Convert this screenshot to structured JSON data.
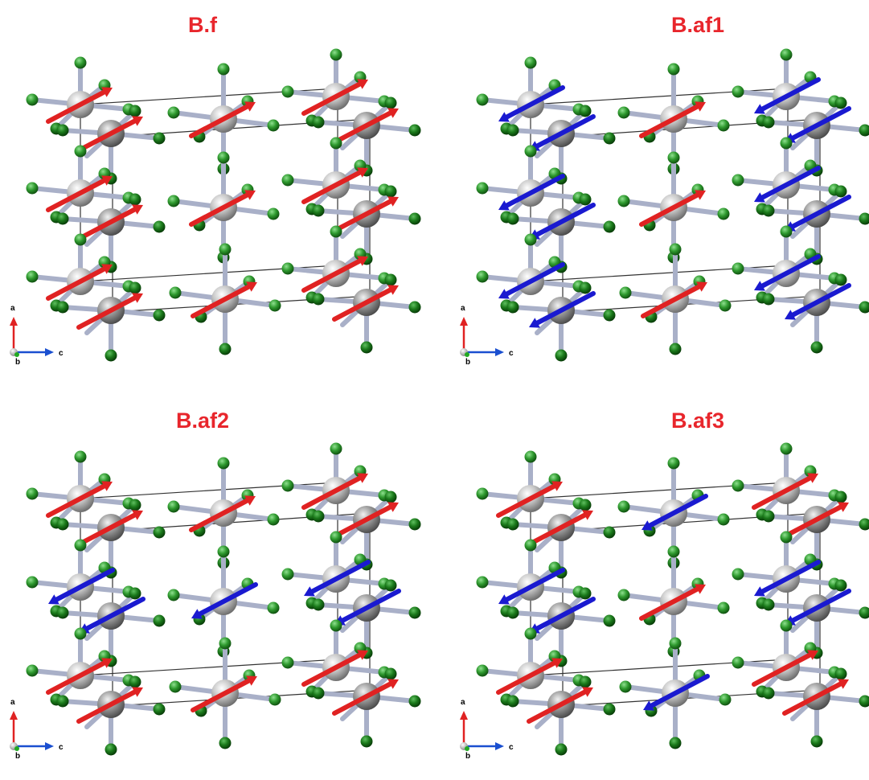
{
  "colors": {
    "title": "#e8262c",
    "spin_up": "#e02222",
    "spin_down": "#1a1ad0",
    "metal_atom": "#b8b8b8",
    "ligand_atom": "#1f8a1f",
    "bond": "#a9b0c8",
    "cell_edge": "#333333",
    "axis_a": "#e02222",
    "axis_b": "#22aa22",
    "axis_c": "#1a4fd0"
  },
  "panels": [
    {
      "id": "bf",
      "title": "B.f",
      "spins": {
        "corner_top": "up",
        "corner_mid": "up",
        "corner_bot": "up",
        "center_top": "up",
        "center_mid": "up",
        "center_bot": "up"
      }
    },
    {
      "id": "baf1",
      "title": "B.af1",
      "spins": {
        "corner_top": "down",
        "corner_mid": "down",
        "corner_bot": "down",
        "center_top": "up",
        "center_mid": "up",
        "center_bot": "up"
      }
    },
    {
      "id": "baf2",
      "title": "B.af2",
      "spins": {
        "corner_top": "up",
        "corner_mid": "down",
        "corner_bot": "up",
        "center_top": "up",
        "center_mid": "down",
        "center_bot": "up"
      }
    },
    {
      "id": "baf3",
      "title": "B.af3",
      "spins": {
        "corner_top": "up",
        "corner_mid": "down",
        "corner_bot": "up",
        "center_top": "down",
        "center_mid": "up",
        "center_bot": "down"
      }
    }
  ],
  "axes_labels": {
    "a": "a",
    "b": "b",
    "c": "c"
  }
}
